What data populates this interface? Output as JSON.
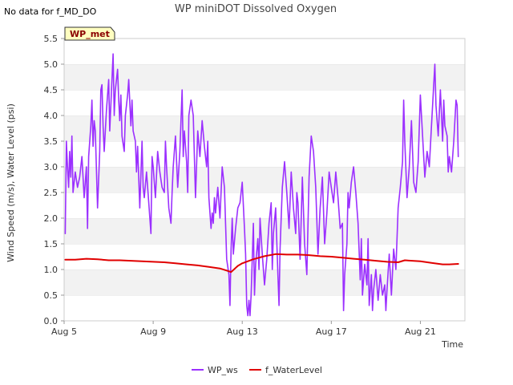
{
  "no_data_text": "No data for f_MD_DO",
  "badge_label": "WP_met",
  "chart_data": {
    "type": "line",
    "title": "WP miniDOT Dissolved Oxygen",
    "xlabel": "Time",
    "ylabel": "Wind Speed (m/s), Water Level (psi)",
    "xlim": [
      5.0,
      23.0
    ],
    "ylim": [
      0.0,
      5.5
    ],
    "x_ticks": [
      {
        "v": 5,
        "label": "Aug 5"
      },
      {
        "v": 9,
        "label": "Aug 9"
      },
      {
        "v": 13,
        "label": "Aug 13"
      },
      {
        "v": 17,
        "label": "Aug 17"
      },
      {
        "v": 21,
        "label": "Aug 21"
      }
    ],
    "y_ticks": [
      {
        "v": 0.0,
        "label": "0.0"
      },
      {
        "v": 0.5,
        "label": "0.5"
      },
      {
        "v": 1.0,
        "label": "1.0"
      },
      {
        "v": 1.5,
        "label": "1.5"
      },
      {
        "v": 2.0,
        "label": "2.0"
      },
      {
        "v": 2.5,
        "label": "2.5"
      },
      {
        "v": 3.0,
        "label": "3.0"
      },
      {
        "v": 3.5,
        "label": "3.5"
      },
      {
        "v": 4.0,
        "label": "4.0"
      },
      {
        "v": 4.5,
        "label": "4.5"
      },
      {
        "v": 5.0,
        "label": "5.0"
      },
      {
        "v": 5.5,
        "label": "5.5"
      }
    ],
    "grid": "horizontal alternating bands",
    "legend_position": "bottom-center",
    "series": [
      {
        "name": "WP_ws",
        "color": "#9b30ff",
        "points": [
          [
            5.05,
            1.7
          ],
          [
            5.1,
            3.5
          ],
          [
            5.15,
            3.0
          ],
          [
            5.2,
            2.6
          ],
          [
            5.25,
            3.3
          ],
          [
            5.3,
            2.8
          ],
          [
            5.35,
            3.6
          ],
          [
            5.4,
            2.5
          ],
          [
            5.5,
            2.9
          ],
          [
            5.6,
            2.6
          ],
          [
            5.7,
            2.8
          ],
          [
            5.8,
            3.2
          ],
          [
            5.9,
            2.4
          ],
          [
            6.0,
            3.0
          ],
          [
            6.05,
            1.8
          ],
          [
            6.1,
            3.2
          ],
          [
            6.2,
            3.8
          ],
          [
            6.25,
            4.3
          ],
          [
            6.3,
            3.4
          ],
          [
            6.35,
            3.9
          ],
          [
            6.4,
            3.7
          ],
          [
            6.5,
            2.2
          ],
          [
            6.6,
            3.3
          ],
          [
            6.65,
            4.5
          ],
          [
            6.7,
            4.6
          ],
          [
            6.75,
            3.8
          ],
          [
            6.8,
            3.3
          ],
          [
            6.9,
            4.1
          ],
          [
            7.0,
            4.7
          ],
          [
            7.05,
            3.7
          ],
          [
            7.1,
            4.2
          ],
          [
            7.2,
            5.2
          ],
          [
            7.25,
            4.0
          ],
          [
            7.3,
            4.5
          ],
          [
            7.4,
            4.9
          ],
          [
            7.45,
            4.3
          ],
          [
            7.5,
            3.9
          ],
          [
            7.55,
            4.4
          ],
          [
            7.6,
            3.6
          ],
          [
            7.7,
            3.3
          ],
          [
            7.75,
            4.0
          ],
          [
            7.85,
            4.4
          ],
          [
            7.9,
            4.7
          ],
          [
            8.0,
            3.8
          ],
          [
            8.05,
            4.3
          ],
          [
            8.1,
            3.7
          ],
          [
            8.2,
            3.5
          ],
          [
            8.25,
            2.9
          ],
          [
            8.3,
            3.4
          ],
          [
            8.4,
            2.2
          ],
          [
            8.5,
            3.5
          ],
          [
            8.55,
            2.6
          ],
          [
            8.6,
            2.4
          ],
          [
            8.7,
            2.9
          ],
          [
            8.8,
            2.3
          ],
          [
            8.9,
            1.7
          ],
          [
            8.95,
            3.2
          ],
          [
            9.0,
            3.0
          ],
          [
            9.1,
            2.4
          ],
          [
            9.2,
            3.3
          ],
          [
            9.3,
            2.9
          ],
          [
            9.4,
            2.6
          ],
          [
            9.5,
            2.5
          ],
          [
            9.55,
            3.5
          ],
          [
            9.6,
            3.0
          ],
          [
            9.7,
            2.2
          ],
          [
            9.8,
            1.9
          ],
          [
            9.85,
            2.5
          ],
          [
            9.9,
            3.0
          ],
          [
            10.0,
            3.6
          ],
          [
            10.1,
            2.6
          ],
          [
            10.2,
            3.3
          ],
          [
            10.3,
            4.5
          ],
          [
            10.35,
            3.2
          ],
          [
            10.4,
            3.7
          ],
          [
            10.5,
            3.1
          ],
          [
            10.55,
            2.5
          ],
          [
            10.6,
            4.0
          ],
          [
            10.7,
            4.3
          ],
          [
            10.8,
            4.0
          ],
          [
            10.9,
            2.4
          ],
          [
            11.0,
            3.7
          ],
          [
            11.1,
            3.2
          ],
          [
            11.2,
            3.9
          ],
          [
            11.3,
            3.4
          ],
          [
            11.4,
            3.0
          ],
          [
            11.45,
            3.5
          ],
          [
            11.5,
            2.4
          ],
          [
            11.6,
            1.8
          ],
          [
            11.65,
            2.1
          ],
          [
            11.7,
            1.9
          ],
          [
            11.75,
            2.4
          ],
          [
            11.8,
            2.1
          ],
          [
            11.9,
            2.6
          ],
          [
            12.0,
            2.0
          ],
          [
            12.1,
            3.0
          ],
          [
            12.2,
            2.6
          ],
          [
            12.3,
            1.2
          ],
          [
            12.4,
            0.9
          ],
          [
            12.45,
            0.3
          ],
          [
            12.5,
            1.4
          ],
          [
            12.55,
            2.0
          ],
          [
            12.6,
            1.3
          ],
          [
            12.7,
            1.8
          ],
          [
            12.8,
            2.2
          ],
          [
            12.9,
            2.3
          ],
          [
            13.0,
            2.7
          ],
          [
            13.1,
            1.8
          ],
          [
            13.15,
            1.3
          ],
          [
            13.2,
            0.3
          ],
          [
            13.25,
            0.1
          ],
          [
            13.3,
            0.4
          ],
          [
            13.35,
            0.1
          ],
          [
            13.4,
            0.5
          ],
          [
            13.5,
            1.9
          ],
          [
            13.55,
            0.5
          ],
          [
            13.6,
            1.1
          ],
          [
            13.7,
            1.6
          ],
          [
            13.75,
            1.0
          ],
          [
            13.8,
            2.0
          ],
          [
            13.9,
            1.3
          ],
          [
            14.0,
            0.7
          ],
          [
            14.1,
            1.2
          ],
          [
            14.2,
            1.9
          ],
          [
            14.3,
            2.3
          ],
          [
            14.35,
            1.0
          ],
          [
            14.4,
            1.7
          ],
          [
            14.5,
            2.2
          ],
          [
            14.6,
            0.9
          ],
          [
            14.65,
            0.3
          ],
          [
            14.7,
            1.4
          ],
          [
            14.8,
            2.6
          ],
          [
            14.9,
            3.1
          ],
          [
            15.0,
            2.5
          ],
          [
            15.1,
            1.8
          ],
          [
            15.2,
            2.9
          ],
          [
            15.3,
            2.2
          ],
          [
            15.4,
            1.7
          ],
          [
            15.45,
            2.5
          ],
          [
            15.5,
            2.3
          ],
          [
            15.6,
            1.2
          ],
          [
            15.7,
            2.8
          ],
          [
            15.8,
            1.5
          ],
          [
            15.9,
            0.9
          ],
          [
            16.0,
            2.8
          ],
          [
            16.1,
            3.6
          ],
          [
            16.2,
            3.3
          ],
          [
            16.3,
            2.6
          ],
          [
            16.4,
            1.3
          ],
          [
            16.5,
            2.2
          ],
          [
            16.6,
            2.8
          ],
          [
            16.7,
            1.5
          ],
          [
            16.8,
            2.1
          ],
          [
            16.9,
            2.9
          ],
          [
            17.0,
            2.6
          ],
          [
            17.1,
            2.3
          ],
          [
            17.2,
            2.9
          ],
          [
            17.3,
            2.4
          ],
          [
            17.4,
            1.8
          ],
          [
            17.5,
            1.9
          ],
          [
            17.55,
            0.2
          ],
          [
            17.6,
            0.9
          ],
          [
            17.7,
            1.5
          ],
          [
            17.75,
            2.5
          ],
          [
            17.8,
            2.2
          ],
          [
            17.9,
            2.7
          ],
          [
            18.0,
            3.0
          ],
          [
            18.1,
            2.5
          ],
          [
            18.2,
            1.9
          ],
          [
            18.3,
            0.8
          ],
          [
            18.35,
            1.6
          ],
          [
            18.4,
            0.5
          ],
          [
            18.5,
            1.1
          ],
          [
            18.6,
            0.7
          ],
          [
            18.65,
            1.6
          ],
          [
            18.7,
            0.3
          ],
          [
            18.8,
            0.9
          ],
          [
            18.85,
            0.2
          ],
          [
            18.9,
            0.6
          ],
          [
            19.0,
            1.0
          ],
          [
            19.1,
            0.4
          ],
          [
            19.2,
            0.9
          ],
          [
            19.3,
            0.5
          ],
          [
            19.4,
            0.7
          ],
          [
            19.45,
            0.2
          ],
          [
            19.5,
            0.6
          ],
          [
            19.6,
            1.3
          ],
          [
            19.7,
            0.5
          ],
          [
            19.8,
            1.4
          ],
          [
            19.9,
            1.0
          ],
          [
            20.0,
            2.2
          ],
          [
            20.1,
            2.6
          ],
          [
            20.2,
            3.1
          ],
          [
            20.25,
            4.3
          ],
          [
            20.3,
            3.5
          ],
          [
            20.4,
            2.4
          ],
          [
            20.5,
            3.0
          ],
          [
            20.6,
            3.9
          ],
          [
            20.7,
            2.7
          ],
          [
            20.8,
            2.5
          ],
          [
            20.9,
            3.1
          ],
          [
            21.0,
            4.4
          ],
          [
            21.1,
            3.6
          ],
          [
            21.2,
            2.8
          ],
          [
            21.3,
            3.3
          ],
          [
            21.4,
            3.0
          ],
          [
            21.5,
            3.8
          ],
          [
            21.6,
            4.6
          ],
          [
            21.65,
            5.0
          ],
          [
            21.7,
            4.2
          ],
          [
            21.8,
            3.6
          ],
          [
            21.9,
            4.5
          ],
          [
            22.0,
            3.5
          ],
          [
            22.05,
            4.3
          ],
          [
            22.1,
            3.8
          ],
          [
            22.2,
            3.6
          ],
          [
            22.25,
            2.9
          ],
          [
            22.3,
            3.2
          ],
          [
            22.4,
            2.9
          ],
          [
            22.5,
            3.5
          ],
          [
            22.6,
            4.3
          ],
          [
            22.65,
            4.2
          ],
          [
            22.7,
            3.2
          ]
        ]
      },
      {
        "name": "f_WaterLevel",
        "color": "#e00000",
        "points": [
          [
            5.05,
            1.19
          ],
          [
            5.5,
            1.19
          ],
          [
            6.0,
            1.21
          ],
          [
            6.5,
            1.2
          ],
          [
            7.0,
            1.18
          ],
          [
            7.5,
            1.18
          ],
          [
            8.0,
            1.17
          ],
          [
            8.5,
            1.16
          ],
          [
            9.0,
            1.15
          ],
          [
            9.5,
            1.14
          ],
          [
            10.0,
            1.12
          ],
          [
            10.5,
            1.1
          ],
          [
            11.0,
            1.08
          ],
          [
            11.5,
            1.05
          ],
          [
            12.0,
            1.02
          ],
          [
            12.3,
            0.98
          ],
          [
            12.5,
            0.95
          ],
          [
            12.8,
            1.07
          ],
          [
            13.0,
            1.12
          ],
          [
            13.5,
            1.2
          ],
          [
            14.0,
            1.26
          ],
          [
            14.5,
            1.3
          ],
          [
            15.0,
            1.29
          ],
          [
            15.5,
            1.29
          ],
          [
            16.0,
            1.28
          ],
          [
            16.5,
            1.26
          ],
          [
            17.0,
            1.25
          ],
          [
            17.5,
            1.23
          ],
          [
            18.0,
            1.21
          ],
          [
            18.5,
            1.19
          ],
          [
            19.0,
            1.17
          ],
          [
            19.5,
            1.15
          ],
          [
            20.0,
            1.14
          ],
          [
            20.3,
            1.18
          ],
          [
            21.0,
            1.16
          ],
          [
            21.5,
            1.13
          ],
          [
            22.0,
            1.1
          ],
          [
            22.3,
            1.1
          ],
          [
            22.7,
            1.11
          ]
        ]
      }
    ]
  }
}
